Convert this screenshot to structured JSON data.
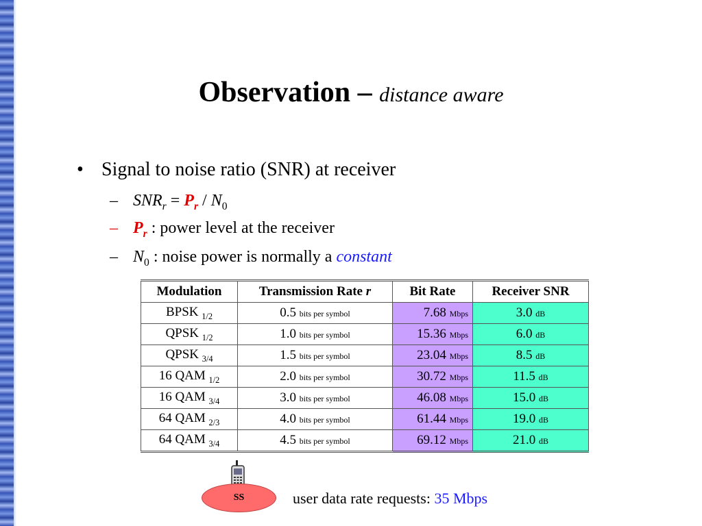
{
  "title": {
    "main": "Observation –",
    "sub": "distance aware"
  },
  "bullet": {
    "marker": "•",
    "text": "Signal to noise ratio (SNR) at receiver"
  },
  "subbullets": {
    "dash": "–",
    "formula": {
      "lhs": "SNR",
      "lhs_sub": "r",
      "eq": " = ",
      "p": "P",
      "p_sub": "r",
      "div": " / ",
      "n": "N",
      "n_sub": "0"
    },
    "power": {
      "p": "P",
      "p_sub": "r",
      "text": " : power level at the receiver"
    },
    "noise": {
      "n": "N",
      "n_sub": "0",
      "text": " : noise power is normally a ",
      "emph": "constant"
    }
  },
  "table": {
    "headers": {
      "modulation": "Modulation",
      "rate": "Transmission Rate ",
      "rate_var": "r",
      "bitrate": "Bit Rate",
      "snr": "Receiver SNR"
    },
    "rate_unit": "bits per symbol",
    "bit_unit": "Mbps",
    "snr_unit": "dB",
    "rows": [
      {
        "mod": "BPSK ",
        "mod_sub": "1/2",
        "rate": "0.5",
        "bit": "7.68",
        "snr": "3.0"
      },
      {
        "mod": "QPSK ",
        "mod_sub": "1/2",
        "rate": "1.0",
        "bit": "15.36",
        "snr": "6.0"
      },
      {
        "mod": "QPSK ",
        "mod_sub": "3/4",
        "rate": "1.5",
        "bit": "23.04",
        "snr": "8.5"
      },
      {
        "mod": "16 QAM ",
        "mod_sub": "1/2",
        "rate": "2.0",
        "bit": "30.72",
        "snr": "11.5"
      },
      {
        "mod": "16 QAM ",
        "mod_sub": "3/4",
        "rate": "3.0",
        "bit": "46.08",
        "snr": "15.0"
      },
      {
        "mod": "64 QAM ",
        "mod_sub": "2/3",
        "rate": "4.0",
        "bit": "61.44",
        "snr": "19.0"
      },
      {
        "mod": "64 QAM ",
        "mod_sub": "3/4",
        "rate": "4.5",
        "bit": "69.12",
        "snr": "21.0"
      }
    ]
  },
  "ss_label": "SS",
  "phone_icon": "mobile-phone-icon",
  "request": {
    "text": "user data rate requests: ",
    "value": "35 Mbps"
  },
  "colors": {
    "red": "#e00000",
    "blue": "#1a1aff",
    "bitrate_bg": "#c9a0ff",
    "snr_bg": "#4dffcc",
    "ss_fill": "#ff6b6b"
  }
}
